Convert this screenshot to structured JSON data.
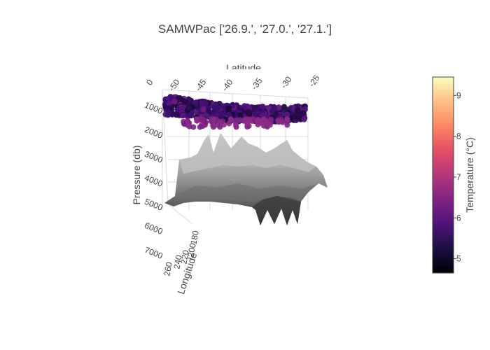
{
  "chart_data": {
    "type": "scatter3d",
    "title": "SAMWPac ['26.9.', '27.0.', '27.1.']",
    "x_axis": {
      "label": "Latitude",
      "ticks": [
        0,
        -50,
        -45,
        -40,
        -35,
        -30,
        -25
      ]
    },
    "y_axis": {
      "label": "Longitude",
      "ticks": [
        260,
        240,
        220,
        200,
        180
      ]
    },
    "z_axis": {
      "label": "Pressure (db)",
      "ticks": [
        1000,
        2000,
        3000,
        4000,
        5000,
        6000,
        7000
      ],
      "reversed": true
    },
    "colorbar": {
      "label": "Temperature (°C)",
      "ticks": [
        5,
        6,
        7,
        8,
        9
      ],
      "range": [
        4.65,
        9.45
      ],
      "colorscale": "magma"
    },
    "surface": {
      "colorscale": "greys"
    }
  }
}
